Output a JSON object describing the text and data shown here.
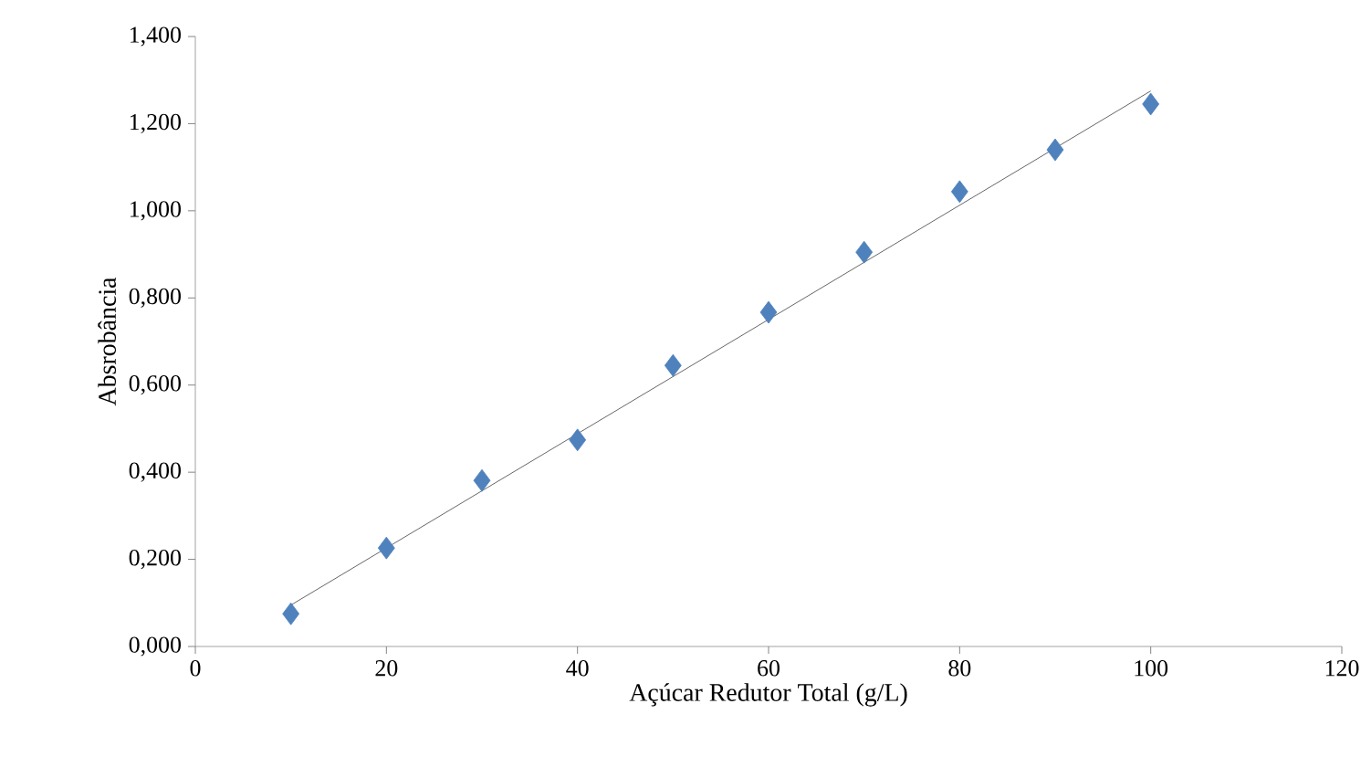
{
  "chart_data": {
    "type": "scatter",
    "xlabel": "Açúcar Redutor Total (g/L)",
    "ylabel": "Absrobância",
    "xlim": [
      0,
      120
    ],
    "xticks": [
      0,
      20,
      40,
      60,
      80,
      100,
      120
    ],
    "ylim": [
      0,
      1.4
    ],
    "yticks": [
      {
        "value": 0,
        "label": "0,000"
      },
      {
        "value": 0.2,
        "label": "0,200"
      },
      {
        "value": 0.4,
        "label": "0,400"
      },
      {
        "value": 0.6,
        "label": "0,600"
      },
      {
        "value": 0.8,
        "label": "0,800"
      },
      {
        "value": 1.0,
        "label": "1,000"
      },
      {
        "value": 1.2,
        "label": "1,200"
      },
      {
        "value": 1.4,
        "label": "1,400"
      }
    ],
    "grid": false,
    "series": [
      {
        "marker": "diamond",
        "color": "#4f81bd",
        "x": [
          10,
          20,
          30,
          40,
          50,
          60,
          70,
          80,
          90,
          100
        ],
        "values": [
          0.075,
          0.226,
          0.381,
          0.474,
          0.645,
          0.767,
          0.905,
          1.044,
          1.14,
          1.245
        ]
      },
      {
        "type": "line",
        "marker": "none",
        "line_style": "solid",
        "color": "#404040",
        "x": [
          10,
          100
        ],
        "values": [
          0.095,
          1.275
        ]
      }
    ]
  }
}
